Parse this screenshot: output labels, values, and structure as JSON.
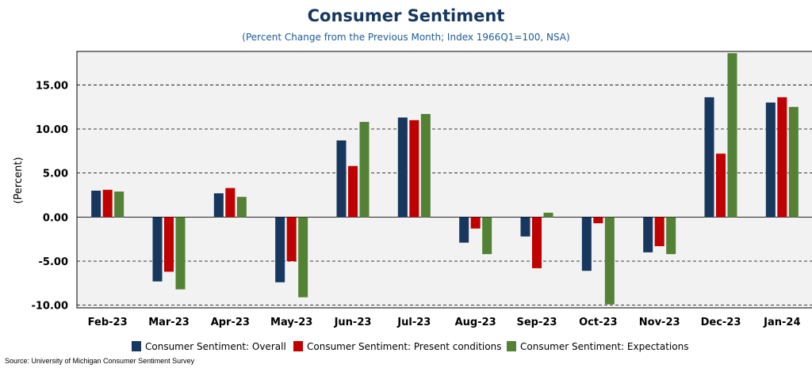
{
  "chart_data": {
    "type": "bar",
    "title": "Consumer Sentiment",
    "subtitle": "(Percent Change from the Previous Month; Index 1966Q1=100, NSA)",
    "ylabel": "(Percent)",
    "xlabel": "",
    "ylim": [
      -10.3,
      18.8
    ],
    "yticks": [
      -10,
      -5,
      0,
      5,
      10,
      15
    ],
    "ytick_labels": [
      "-10.00",
      "-5.00",
      "0.00",
      "5.00",
      "10.00",
      "15.00"
    ],
    "grid": "horizontal dashed",
    "legend_position": "bottom",
    "categories": [
      "Feb-23",
      "Mar-23",
      "Apr-23",
      "May-23",
      "Jun-23",
      "Jul-23",
      "Aug-23",
      "Sep-23",
      "Oct-23",
      "Nov-23",
      "Dec-23",
      "Jan-24"
    ],
    "series": [
      {
        "name": "Consumer Sentiment: Overall",
        "color": "#17375e",
        "values": [
          3.0,
          -7.3,
          2.7,
          -7.4,
          8.7,
          11.3,
          -2.9,
          -2.2,
          -6.1,
          -4.0,
          13.6,
          13.0
        ]
      },
      {
        "name": "Consumer Sentiment: Present conditions",
        "color": "#c00000",
        "values": [
          3.1,
          -6.2,
          3.3,
          -5.0,
          5.8,
          11.0,
          -1.3,
          -5.8,
          -0.7,
          -3.3,
          7.2,
          13.6
        ]
      },
      {
        "name": "Consumer Sentiment: Expectations",
        "color": "#538135",
        "values": [
          2.9,
          -8.2,
          2.3,
          -9.1,
          10.8,
          11.7,
          -4.2,
          0.5,
          -9.9,
          -4.2,
          18.6,
          12.5
        ]
      }
    ],
    "source": "Source: University of Michigan Consumer Sentiment Survey"
  }
}
